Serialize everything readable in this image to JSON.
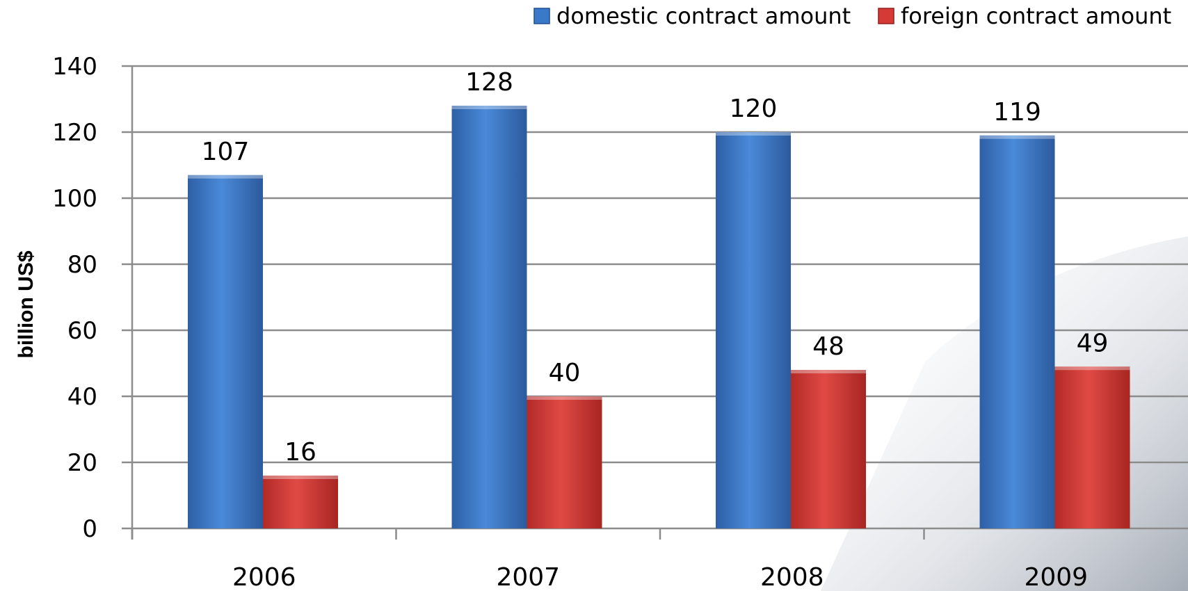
{
  "chart_data": {
    "type": "bar",
    "categories": [
      "2006",
      "2007",
      "2008",
      "2009"
    ],
    "series": [
      {
        "name": "domestic contract amount",
        "values": [
          107,
          128,
          120,
          119
        ],
        "color": "#3a78c9"
      },
      {
        "name": "foreign contract amount",
        "values": [
          16,
          40,
          48,
          49
        ],
        "color": "#d63a36"
      }
    ],
    "title": "",
    "xlabel": "",
    "ylabel": "billion US$",
    "ylim": [
      0,
      140
    ],
    "yticks": [
      0,
      20,
      40,
      60,
      80,
      100,
      120,
      140
    ],
    "grid": true,
    "legend_position": "top-right"
  }
}
